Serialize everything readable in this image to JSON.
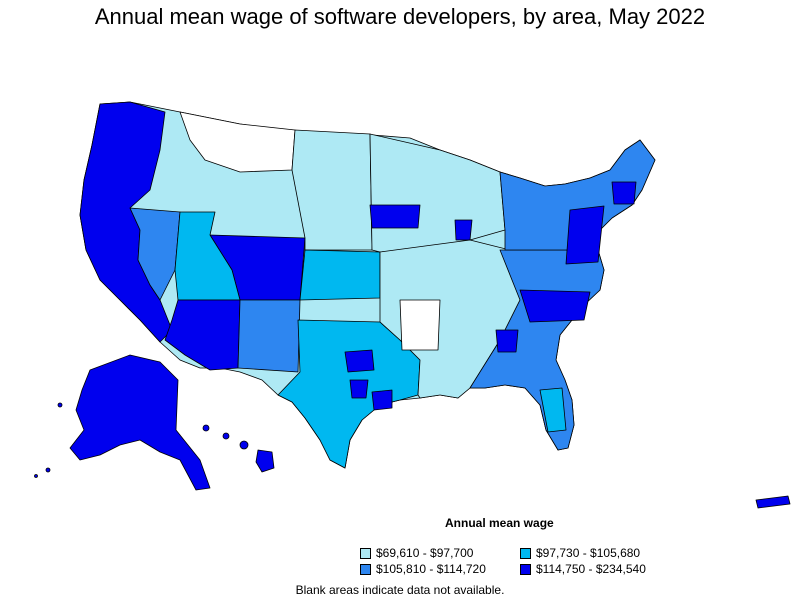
{
  "title": "Annual mean wage of software developers, by area, May 2022",
  "legend": {
    "title": "Annual mean wage",
    "items": [
      {
        "label": "$69,610 - $97,700",
        "color": "#aee9f4"
      },
      {
        "label": "$97,730 - $105,680",
        "color": "#00b8f0"
      },
      {
        "label": "$105,810 - $114,720",
        "color": "#2e86f0"
      },
      {
        "label": "$114,750 - $234,540",
        "color": "#0000ee"
      }
    ]
  },
  "note": "Blank areas indicate data not available.",
  "colors": {
    "tier1": "#aee9f4",
    "tier2": "#00b8f0",
    "tier3": "#2e86f0",
    "tier4": "#0000ee",
    "no_data": "#ffffff",
    "border": "#000000"
  }
}
